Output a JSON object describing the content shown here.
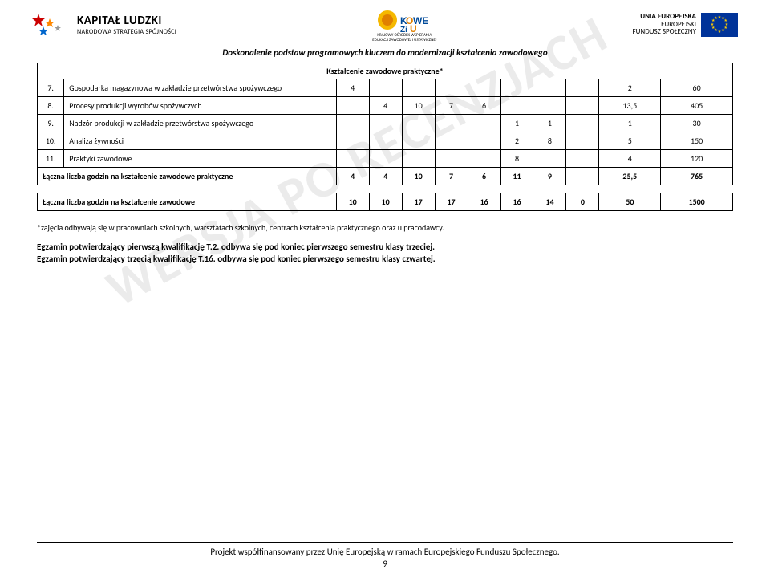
{
  "header": {
    "logo_left": {
      "main": "KAPITAŁ LUDZKI",
      "sub": "NARODOWA STRATEGIA SPÓJNOŚCI"
    },
    "logo_center_sub1": "KRAJOWY OŚRODEK WSPIERANIA",
    "logo_center_sub2": "EDUKACJI ZAWODOWEJ I USTAWICZNEJ",
    "logo_right": {
      "l1": "UNIA EUROPEJSKA",
      "l2": "EUROPEJSKI",
      "l3": "FUNDUSZ SPOŁECZNY"
    },
    "project_title": "Doskonalenie podstaw programowych kluczem do modernizacji kształcenia zawodowego"
  },
  "table": {
    "section_title": "Kształcenie zawodowe praktyczne*",
    "rows": [
      {
        "num": "7.",
        "name": "Gospodarka magazynowa w zakładzie przetwórstwa spożywczego",
        "cells": [
          "4",
          "",
          "",
          "",
          "",
          "",
          "",
          "",
          "2",
          "60"
        ]
      },
      {
        "num": "8.",
        "name": "Procesy produkcji wyrobów spożywczych",
        "cells": [
          "",
          "4",
          "10",
          "7",
          "6",
          "",
          "",
          "",
          "13,5",
          "405"
        ]
      },
      {
        "num": "9.",
        "name": "Nadzór produkcji w zakładzie przetwórstwa spożywczego",
        "cells": [
          "",
          "",
          "",
          "",
          "",
          "1",
          "1",
          "",
          "1",
          "30"
        ]
      },
      {
        "num": "10.",
        "name": "Analiza żywności",
        "cells": [
          "",
          "",
          "",
          "",
          "",
          "2",
          "8",
          "",
          "5",
          "150"
        ]
      },
      {
        "num": "11.",
        "name": "Praktyki zawodowe",
        "cells": [
          "",
          "",
          "",
          "",
          "",
          "8",
          "",
          "",
          "4",
          "120"
        ]
      }
    ],
    "sum1": {
      "label": "Łączna liczba godzin na kształcenie zawodowe praktyczne",
      "cells": [
        "4",
        "4",
        "10",
        "7",
        "6",
        "11",
        "9",
        "",
        "25,5",
        "765"
      ]
    },
    "sum2": {
      "label": "Łączna liczba godzin na kształcenie zawodowe",
      "cells": [
        "10",
        "10",
        "17",
        "17",
        "16",
        "16",
        "14",
        "0",
        "50",
        "1500"
      ]
    }
  },
  "note": "*zajęcia odbywają się w pracowniach szkolnych, warsztatach szkolnych, centrach kształcenia praktycznego oraz u pracodawcy.",
  "exam1": "Egzamin potwierdzający pierwszą kwalifikację T.2. odbywa się pod koniec pierwszego semestru klasy trzeciej.",
  "exam2": "Egzamin potwierdzający trzecią kwalifikację T.16. odbywa się pod koniec pierwszego semestru klasy czwartej.",
  "watermark": "WERSJA PO RECENZJACH",
  "footer": {
    "text": "Projekt współfinansowany przez Unię Europejską w ramach Europejskiego Funduszu Społecznego.",
    "page": "9"
  },
  "colors": {
    "watermark": "rgba(0,0,0,0.08)",
    "flag_bg": "#003399",
    "flag_star": "#ffcc00"
  }
}
